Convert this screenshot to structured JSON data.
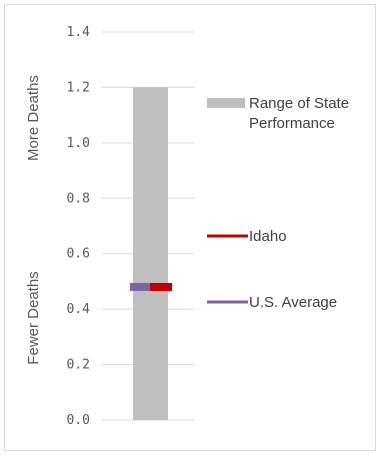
{
  "chart_data": {
    "type": "bar",
    "ylim": [
      0,
      1.4
    ],
    "yticks": [
      "0.0",
      "0.2",
      "0.4",
      "0.6",
      "0.8",
      "1.0",
      "1.2",
      "1.4"
    ],
    "ytick_values": [
      0,
      0.2,
      0.4,
      0.6,
      0.8,
      1.0,
      1.2,
      1.4
    ],
    "grid": true,
    "side_labels": {
      "top": "More Deaths",
      "bottom": "Fewer Deaths"
    },
    "range": {
      "name": "Range of State Performance",
      "min": 0.0,
      "max": 1.2,
      "color": "#bfbfbf"
    },
    "markers": [
      {
        "name": "U.S. Average",
        "value": 0.48,
        "color": "#8064a2"
      },
      {
        "name": "Idaho",
        "value": 0.48,
        "color": "#c00000"
      }
    ],
    "legend": [
      {
        "label_lines": [
          "Range of State",
          "Performance"
        ],
        "swatch": "bar",
        "color": "#bfbfbf"
      },
      {
        "label_lines": [
          "Idaho"
        ],
        "swatch": "line",
        "color": "#c00000"
      },
      {
        "label_lines": [
          "U.S. Average"
        ],
        "swatch": "line",
        "color": "#8064a2"
      }
    ],
    "legend_position": "right"
  }
}
